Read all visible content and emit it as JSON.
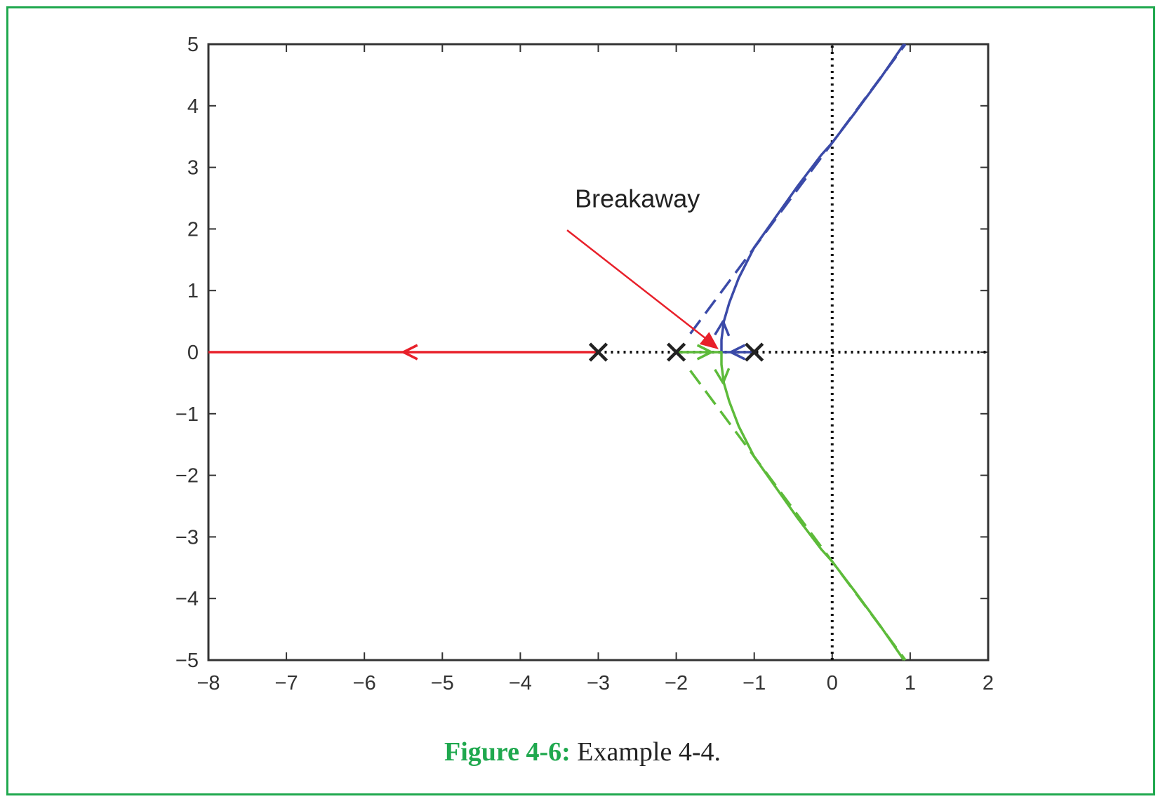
{
  "caption": {
    "label": "Figure 4-6:",
    "text": "Example 4-4."
  },
  "colors": {
    "frame": "#1fa84e",
    "red_branch": "#e8202a",
    "blue_branch": "#3b4aa8",
    "green_branch": "#5dbb3a",
    "pole_marker": "#222222",
    "axis_dotted": "#111111"
  },
  "chart_data": {
    "type": "line",
    "title": "",
    "xlabel": "",
    "ylabel": "",
    "xlim": [
      -8,
      2
    ],
    "ylim": [
      -5,
      5
    ],
    "x_ticks": [
      "−8",
      "−7",
      "−6",
      "−5",
      "−4",
      "−3",
      "−2",
      "−1",
      "0",
      "1",
      "2"
    ],
    "y_ticks": [
      "5",
      "4",
      "3",
      "2",
      "1",
      "0",
      "−1",
      "−2",
      "−3",
      "−4",
      "−5"
    ],
    "x_tick_values": [
      -8,
      -7,
      -6,
      -5,
      -4,
      -3,
      -2,
      -1,
      0,
      1,
      2
    ],
    "y_tick_values": [
      5,
      4,
      3,
      2,
      1,
      0,
      -1,
      -2,
      -3,
      -4,
      -5
    ],
    "grid": false,
    "poles": [
      {
        "re": -3,
        "im": 0
      },
      {
        "re": -2,
        "im": 0
      },
      {
        "re": -1,
        "im": 0
      }
    ],
    "breakaway_point": {
      "re": -1.42,
      "im": 0
    },
    "annotation": {
      "text": "Breakaway",
      "x": -3.3,
      "y": 2.35,
      "points_to": {
        "re": -1.42,
        "im": 0
      }
    },
    "series": [
      {
        "color": "red_branch",
        "style": "solid",
        "points": [
          [
            -3,
            0
          ],
          [
            -8,
            0
          ]
        ]
      },
      {
        "color": "blue_branch",
        "style": "solid",
        "points": [
          [
            -1,
            0
          ],
          [
            -1.42,
            0
          ],
          [
            -1.42,
            0.2
          ],
          [
            -1.39,
            0.5
          ],
          [
            -1.32,
            0.8
          ],
          [
            -1.2,
            1.2
          ],
          [
            -1.0,
            1.7
          ],
          [
            -0.72,
            2.2
          ],
          [
            -0.44,
            2.7
          ],
          [
            -0.14,
            3.2
          ],
          [
            0,
            3.4
          ],
          [
            0.3,
            3.9
          ],
          [
            0.62,
            4.45
          ],
          [
            0.92,
            5
          ]
        ]
      },
      {
        "color": "green_branch",
        "style": "solid",
        "points": [
          [
            -2,
            0
          ],
          [
            -1.42,
            0
          ],
          [
            -1.42,
            -0.2
          ],
          [
            -1.39,
            -0.5
          ],
          [
            -1.32,
            -0.8
          ],
          [
            -1.2,
            -1.2
          ],
          [
            -1.0,
            -1.7
          ],
          [
            -0.72,
            -2.2
          ],
          [
            -0.44,
            -2.7
          ],
          [
            -0.14,
            -3.2
          ],
          [
            0,
            -3.4
          ],
          [
            0.3,
            -3.9
          ],
          [
            0.62,
            -4.45
          ],
          [
            0.92,
            -5
          ]
        ]
      },
      {
        "color": "blue_branch",
        "style": "dashed",
        "points": [
          [
            -1.82,
            0.3
          ],
          [
            0.94,
            5
          ]
        ]
      },
      {
        "color": "green_branch",
        "style": "dashed",
        "points": [
          [
            -1.82,
            -0.3
          ],
          [
            0.94,
            -5
          ]
        ]
      }
    ],
    "dotted_lines": [
      {
        "points": [
          [
            -3,
            0
          ],
          [
            2,
            0
          ]
        ]
      },
      {
        "points": [
          [
            0,
            -5
          ],
          [
            0,
            5
          ]
        ]
      }
    ],
    "direction_arrows": [
      {
        "color": "red_branch",
        "at": [
          -5.5,
          0
        ],
        "dir": [
          -1,
          0
        ]
      },
      {
        "color": "blue_branch",
        "at": [
          -1.4,
          0.5
        ],
        "dir": [
          0.08,
          1
        ]
      },
      {
        "color": "green_branch",
        "at": [
          -1.4,
          -0.5
        ],
        "dir": [
          0.08,
          -1
        ]
      },
      {
        "color": "green_branch",
        "at": [
          -1.55,
          0
        ],
        "dir": [
          1,
          0
        ]
      },
      {
        "color": "blue_branch",
        "at": [
          -1.3,
          0
        ],
        "dir": [
          -1,
          0
        ]
      }
    ]
  }
}
